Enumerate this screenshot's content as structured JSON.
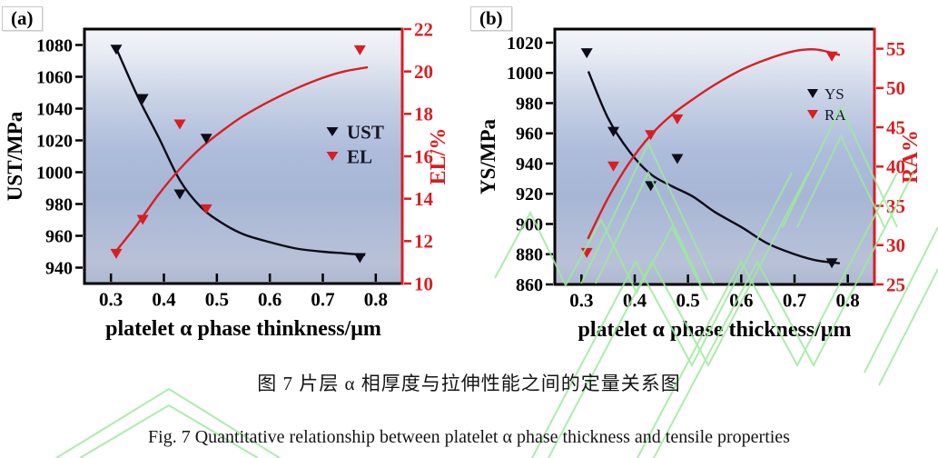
{
  "figure": {
    "panels": [
      {
        "label": "(a)"
      },
      {
        "label": "(b)"
      }
    ],
    "caption_zh": "图 7 片层 α 相厚度与拉伸性能之间的定量关系图",
    "caption_en": "Fig. 7 Quantitative relationship between platelet α phase thickness and tensile properties",
    "watermark_color": "#9dea9d",
    "plot_background_stops": [
      [
        0,
        "#f3f5f9"
      ],
      [
        0.1,
        "#e7ebf3"
      ],
      [
        0.28,
        "#c7d1e5"
      ],
      [
        0.48,
        "#aebcdb"
      ],
      [
        0.66,
        "#a8b6d6"
      ],
      [
        0.8,
        "#b1bdd7"
      ],
      [
        0.92,
        "#b8c1d7"
      ],
      [
        1,
        "#aeb8cf"
      ]
    ]
  },
  "chart_data": [
    {
      "type": "scatter",
      "panel": "(a)",
      "xlabel": "platelet α phase thinkness/μm",
      "xlim": [
        0.25,
        0.85
      ],
      "xticks": [
        0.3,
        0.4,
        0.5,
        0.6,
        0.7,
        0.8
      ],
      "grid": false,
      "axes": {
        "left": {
          "label": "UST/MPa",
          "color": "#000000",
          "lim": [
            930,
            1090
          ],
          "ticks": [
            940,
            960,
            980,
            1000,
            1020,
            1040,
            1060,
            1080
          ]
        },
        "right": {
          "label": "EL/%",
          "color": "#d91e22",
          "lim": [
            10,
            22
          ],
          "ticks": [
            10,
            12,
            14,
            16,
            18,
            20,
            22
          ]
        }
      },
      "series": [
        {
          "name": "UST",
          "axis": "left",
          "color": "#0c0c18",
          "marker": "triangle-down",
          "points": [
            [
              0.31,
              1077
            ],
            [
              0.36,
              1046
            ],
            [
              0.43,
              986
            ],
            [
              0.48,
              1021
            ],
            [
              0.77,
              946
            ]
          ],
          "trend": [
            [
              0.31,
              1078
            ],
            [
              0.35,
              1048
            ],
            [
              0.39,
              1022
            ],
            [
              0.43,
              995
            ],
            [
              0.47,
              978
            ],
            [
              0.51,
              968
            ],
            [
              0.55,
              961
            ],
            [
              0.6,
              956
            ],
            [
              0.65,
              952
            ],
            [
              0.7,
              950
            ],
            [
              0.74,
              949
            ],
            [
              0.78,
              948
            ]
          ]
        },
        {
          "name": "EL",
          "axis": "right",
          "color": "#d91e22",
          "marker": "triangle-down",
          "points": [
            [
              0.31,
              11.4
            ],
            [
              0.36,
              13.0
            ],
            [
              0.43,
              17.5
            ],
            [
              0.48,
              13.5
            ],
            [
              0.77,
              21.0
            ]
          ],
          "trend": [
            [
              0.312,
              11.6
            ],
            [
              0.35,
              12.8
            ],
            [
              0.39,
              14.2
            ],
            [
              0.43,
              15.4
            ],
            [
              0.47,
              16.4
            ],
            [
              0.51,
              17.2
            ],
            [
              0.55,
              17.9
            ],
            [
              0.6,
              18.6
            ],
            [
              0.65,
              19.2
            ],
            [
              0.7,
              19.7
            ],
            [
              0.74,
              20.0
            ],
            [
              0.785,
              20.2
            ]
          ]
        }
      ],
      "legend": {
        "entries": [
          "UST",
          "EL"
        ],
        "position": "middle-right",
        "text_color": "#151528",
        "bold": true
      }
    },
    {
      "type": "scatter",
      "panel": "(b)",
      "xlabel": "platelet α phase thickness/μm",
      "xlim": [
        0.25,
        0.85
      ],
      "xticks": [
        0.3,
        0.4,
        0.5,
        0.6,
        0.7,
        0.8
      ],
      "grid": false,
      "axes": {
        "left": {
          "label": "YS/MPa",
          "color": "#000000",
          "lim": [
            860,
            1029
          ],
          "ticks": [
            860,
            880,
            900,
            920,
            940,
            960,
            980,
            1000,
            1020
          ]
        },
        "right": {
          "label": "RA%",
          "color": "#d91e22",
          "lim": [
            25,
            57.5
          ],
          "ticks": [
            25,
            30,
            35,
            40,
            45,
            50,
            55
          ]
        }
      },
      "series": [
        {
          "name": "YS",
          "axis": "left",
          "color": "#0c0c18",
          "marker": "triangle-down",
          "points": [
            [
              0.31,
              1013
            ],
            [
              0.36,
              961
            ],
            [
              0.43,
              925
            ],
            [
              0.48,
              943
            ],
            [
              0.77,
              874
            ]
          ],
          "trend": [
            [
              0.313,
              1001
            ],
            [
              0.35,
              970
            ],
            [
              0.39,
              948
            ],
            [
              0.43,
              933
            ],
            [
              0.47,
              925
            ],
            [
              0.51,
              918
            ],
            [
              0.55,
              908
            ],
            [
              0.6,
              898
            ],
            [
              0.65,
              887
            ],
            [
              0.7,
              880
            ],
            [
              0.74,
              876
            ],
            [
              0.785,
              874
            ]
          ]
        },
        {
          "name": "RA",
          "axis": "right",
          "color": "#d91e22",
          "marker": "triangle-down",
          "points": [
            [
              0.31,
              29
            ],
            [
              0.36,
              40
            ],
            [
              0.43,
              44
            ],
            [
              0.48,
              46
            ],
            [
              0.77,
              54
            ]
          ],
          "trend": [
            [
              0.312,
              30.8
            ],
            [
              0.35,
              36.0
            ],
            [
              0.39,
              40.5
            ],
            [
              0.43,
              44.0
            ],
            [
              0.47,
              46.6
            ],
            [
              0.51,
              48.6
            ],
            [
              0.55,
              50.4
            ],
            [
              0.6,
              52.3
            ],
            [
              0.65,
              53.7
            ],
            [
              0.7,
              54.7
            ],
            [
              0.74,
              54.9
            ],
            [
              0.785,
              54.2
            ]
          ]
        }
      ],
      "legend": {
        "entries": [
          "YS",
          "RA"
        ],
        "position": "top-right",
        "text_color": "#151528",
        "bold": false
      }
    }
  ]
}
